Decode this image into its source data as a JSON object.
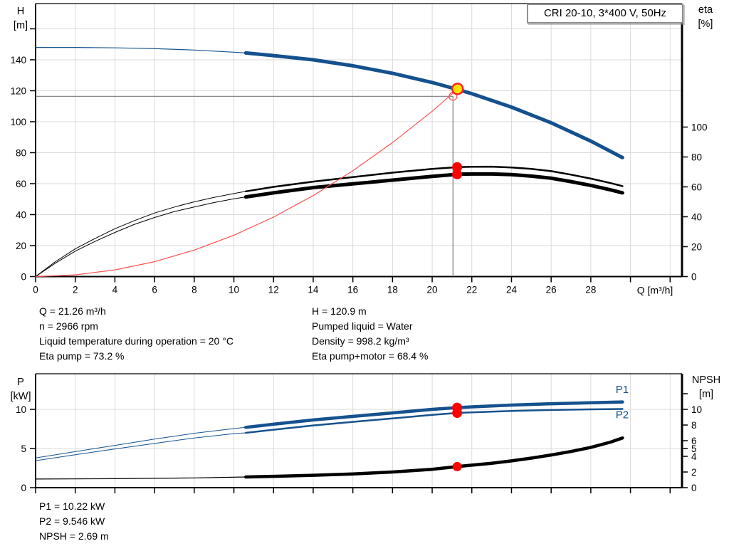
{
  "title_box": "CRI 20-10, 3*400 V, 50Hz",
  "colors": {
    "curve_blue": "#15518E",
    "curve_black": "#000000",
    "system_red": "#FF5050",
    "marker_red": "#FF0000",
    "duty_yellow": "#FFE200",
    "duty_ring_red": "#FF2222",
    "grid": "#DBDBDB",
    "crosshair": "#7A7A7A",
    "axis": "#000000"
  },
  "info_top_left": [
    "Q = 21.26 m³/h",
    "n = 2966 rpm",
    "Liquid temperature during operation = 20 °C",
    "Eta pump = 73.2 %"
  ],
  "info_top_right": [
    "H = 120.9 m",
    "Pumped liquid = Water",
    "Density = 998.2 kg/m³",
    "Eta pump+motor = 68.4 %"
  ],
  "info_bottom": [
    "P1 = 10.22 kW",
    "P2 = 9.546 kW",
    "NPSH = 2.69 m"
  ],
  "chart_data": [
    {
      "type": "line",
      "id": "qh-eta-chart",
      "x_axis": {
        "label": "Q [m³/h]",
        "min": 0,
        "max": 32.6,
        "labels": [
          0,
          2,
          4,
          6,
          8,
          10,
          12,
          14,
          16,
          18,
          20,
          22,
          24,
          26,
          28
        ],
        "marks": [
          0,
          2,
          4,
          6,
          8,
          10,
          12,
          14,
          16,
          18,
          20,
          22,
          24,
          26,
          28,
          30,
          32
        ],
        "grid": [
          2,
          4,
          6,
          8,
          10,
          12,
          14,
          16,
          18,
          20,
          22,
          24,
          26,
          28,
          30,
          32
        ]
      },
      "left_axis": {
        "title": [
          "H",
          "[m]"
        ],
        "min": 0,
        "max": 176.3,
        "labels": [
          0,
          20,
          40,
          60,
          80,
          100,
          120,
          140
        ],
        "marks": [
          0,
          20,
          40,
          60,
          80,
          100,
          120,
          140,
          160
        ],
        "grid": [
          20,
          40,
          60,
          80,
          100,
          120,
          140,
          160
        ]
      },
      "right_axis": {
        "title": [
          "eta",
          "[%]"
        ],
        "min": 0,
        "max": 182.6,
        "labels": [
          0,
          20,
          40,
          60,
          80,
          100
        ],
        "marks": [
          0,
          20,
          40,
          60,
          80,
          100
        ]
      },
      "crosshair": {
        "q": 21.05,
        "v": 116.4,
        "axis": "left"
      },
      "series": [
        {
          "name": "eta-pump",
          "axis": "right",
          "color": "#000000",
          "w_thin": 1,
          "w_thick": 2.5,
          "bold_from": 10.6,
          "points": [
            [
              0,
              0
            ],
            [
              1,
              10
            ],
            [
              2,
              18.5
            ],
            [
              3,
              25.5
            ],
            [
              4,
              32
            ],
            [
              5,
              37.5
            ],
            [
              6,
              42.5
            ],
            [
              7,
              46.5
            ],
            [
              8,
              50
            ],
            [
              9,
              53
            ],
            [
              10,
              55.5
            ],
            [
              10.6,
              57
            ],
            [
              12,
              60
            ],
            [
              14,
              63.5
            ],
            [
              16,
              66.5
            ],
            [
              18,
              69.5
            ],
            [
              20,
              72
            ],
            [
              21.26,
              73.2
            ],
            [
              22,
              73.4
            ],
            [
              23,
              73.5
            ],
            [
              24,
              73
            ],
            [
              25,
              72
            ],
            [
              26,
              70.5
            ],
            [
              27,
              68.2
            ],
            [
              28,
              65.5
            ],
            [
              29,
              62.5
            ],
            [
              29.6,
              60.5
            ]
          ]
        },
        {
          "name": "eta-pump-motor",
          "axis": "right",
          "color": "#000000",
          "w_thin": 1,
          "w_thick": 5,
          "bold_from": 10.6,
          "points": [
            [
              0,
              0
            ],
            [
              1,
              9
            ],
            [
              2,
              17
            ],
            [
              3,
              23.5
            ],
            [
              4,
              29.5
            ],
            [
              5,
              35
            ],
            [
              6,
              39.5
            ],
            [
              7,
              43.5
            ],
            [
              8,
              46.5
            ],
            [
              9,
              49.5
            ],
            [
              10,
              52
            ],
            [
              10.6,
              53.3
            ],
            [
              12,
              56
            ],
            [
              14,
              59.5
            ],
            [
              16,
              62
            ],
            [
              18,
              64.5
            ],
            [
              20,
              67
            ],
            [
              21.26,
              68.4
            ],
            [
              22,
              68.6
            ],
            [
              23,
              68.6
            ],
            [
              24,
              68.2
            ],
            [
              25,
              67.2
            ],
            [
              26,
              65.8
            ],
            [
              27,
              63.5
            ],
            [
              28,
              61
            ],
            [
              29,
              58
            ],
            [
              29.6,
              56
            ]
          ]
        },
        {
          "name": "H-curve",
          "axis": "left",
          "color": "#15518E",
          "w_thin": 1.2,
          "w_thick": 5,
          "bold_from": 10.6,
          "points": [
            [
              0,
              148
            ],
            [
              2,
              148
            ],
            [
              4,
              147.7
            ],
            [
              6,
              147.2
            ],
            [
              8,
              146.3
            ],
            [
              10,
              144.9
            ],
            [
              10.6,
              144.4
            ],
            [
              12,
              142.7
            ],
            [
              14,
              140
            ],
            [
              16,
              136.1
            ],
            [
              18,
              131.3
            ],
            [
              20,
              125.3
            ],
            [
              21.26,
              120.9
            ],
            [
              22,
              118.1
            ],
            [
              24,
              109.4
            ],
            [
              26,
              99.3
            ],
            [
              28,
              87.5
            ],
            [
              29.6,
              76.8
            ]
          ]
        },
        {
          "name": "system-curve",
          "axis": "left",
          "color": "#FF5050",
          "w_thin": 1.2,
          "w_thick": 1.2,
          "bold_from": null,
          "points": [
            [
              0,
              0
            ],
            [
              2,
              1.1
            ],
            [
              4,
              4.3
            ],
            [
              6,
              9.6
            ],
            [
              8,
              17.1
            ],
            [
              10,
              26.7
            ],
            [
              12,
              38.4
            ],
            [
              14,
              52.3
            ],
            [
              16,
              68.3
            ],
            [
              18,
              86.5
            ],
            [
              20,
              106.8
            ],
            [
              21.28,
              121
            ]
          ]
        }
      ],
      "markers": [
        {
          "type": "ring",
          "axis": "left",
          "at": [
            21.05,
            116.4
          ],
          "r": 5.5,
          "stroke": "#FF5050",
          "sw": 1.3
        },
        {
          "type": "dot",
          "axis": "right",
          "at": [
            21.26,
            73.2
          ],
          "r": 7,
          "fill": "#FF0000"
        },
        {
          "type": "dot",
          "axis": "right",
          "at": [
            21.26,
            68.4
          ],
          "r": 7,
          "fill": "#FF0000"
        },
        {
          "type": "duty",
          "axis": "left",
          "at": [
            21.28,
            121.2
          ],
          "r": 7.5,
          "fill": "#FFE200",
          "stroke": "#FF2222",
          "sw": 2.5
        }
      ],
      "annotations": []
    },
    {
      "type": "line",
      "id": "power-npsh-chart",
      "x_axis": {
        "label": "",
        "min": 0,
        "max": 32.6,
        "labels": [],
        "marks": [
          0,
          2,
          4,
          6,
          8,
          10,
          12,
          14,
          16,
          18,
          20,
          22,
          24,
          26,
          28,
          30,
          32
        ],
        "grid": [
          2,
          4,
          6,
          8,
          10,
          12,
          14,
          16,
          18,
          20,
          22,
          24,
          26,
          28,
          30,
          32
        ]
      },
      "left_axis": {
        "title": [
          "P",
          "[kW]"
        ],
        "min": 0,
        "max": 14.55,
        "labels": [
          0,
          5,
          10
        ],
        "marks": [
          0,
          5,
          10
        ],
        "grid": [
          5,
          10
        ]
      },
      "right_axis": {
        "title": [
          "NPSH",
          "[m]"
        ],
        "min": 0,
        "max": 14.55,
        "labels": [
          0,
          2,
          4,
          5,
          6,
          8,
          10
        ],
        "marks": [
          0,
          2,
          4,
          5,
          6,
          8,
          10,
          12
        ]
      },
      "crosshair": null,
      "series": [
        {
          "name": "P1-curve",
          "axis": "left",
          "color": "#15518E",
          "w_thin": 1,
          "w_thick": 4.5,
          "bold_from": 10.6,
          "points": [
            [
              0,
              3.8
            ],
            [
              2,
              4.6
            ],
            [
              4,
              5.4
            ],
            [
              6,
              6.2
            ],
            [
              8,
              6.95
            ],
            [
              10,
              7.55
            ],
            [
              10.6,
              7.7
            ],
            [
              12,
              8.1
            ],
            [
              14,
              8.65
            ],
            [
              16,
              9.1
            ],
            [
              18,
              9.55
            ],
            [
              20,
              10
            ],
            [
              21.26,
              10.22
            ],
            [
              22,
              10.32
            ],
            [
              24,
              10.55
            ],
            [
              26,
              10.72
            ],
            [
              28,
              10.85
            ],
            [
              29.6,
              10.95
            ]
          ]
        },
        {
          "name": "P2-curve",
          "axis": "left",
          "color": "#15518E",
          "w_thin": 1,
          "w_thick": 2.5,
          "bold_from": 10.6,
          "points": [
            [
              0,
              3.45
            ],
            [
              2,
              4.2
            ],
            [
              4,
              4.95
            ],
            [
              6,
              5.65
            ],
            [
              8,
              6.35
            ],
            [
              10,
              6.9
            ],
            [
              10.6,
              7.0
            ],
            [
              12,
              7.4
            ],
            [
              14,
              7.95
            ],
            [
              16,
              8.4
            ],
            [
              18,
              8.85
            ],
            [
              20,
              9.3
            ],
            [
              21.26,
              9.546
            ],
            [
              22,
              9.62
            ],
            [
              24,
              9.8
            ],
            [
              26,
              9.92
            ],
            [
              28,
              10
            ],
            [
              29.6,
              10.05
            ]
          ]
        },
        {
          "name": "NPSH-curve",
          "axis": "right",
          "color": "#000000",
          "w_thin": 1.2,
          "w_thick": 4.5,
          "bold_from": 10.6,
          "points": [
            [
              0,
              1.1
            ],
            [
              4,
              1.15
            ],
            [
              8,
              1.25
            ],
            [
              10.6,
              1.36
            ],
            [
              12,
              1.45
            ],
            [
              14,
              1.58
            ],
            [
              16,
              1.75
            ],
            [
              18,
              2.0
            ],
            [
              20,
              2.35
            ],
            [
              21.26,
              2.69
            ],
            [
              22,
              2.87
            ],
            [
              23,
              3.12
            ],
            [
              24,
              3.42
            ],
            [
              25,
              3.77
            ],
            [
              26,
              4.17
            ],
            [
              27,
              4.62
            ],
            [
              28,
              5.15
            ],
            [
              29,
              5.82
            ],
            [
              29.6,
              6.35
            ]
          ]
        }
      ],
      "markers": [
        {
          "type": "dot",
          "axis": "left",
          "at": [
            21.26,
            10.22
          ],
          "r": 7,
          "fill": "#FF0000"
        },
        {
          "type": "dot",
          "axis": "left",
          "at": [
            21.26,
            9.546
          ],
          "r": 7,
          "fill": "#FF0000"
        },
        {
          "type": "dot",
          "axis": "right",
          "at": [
            21.26,
            2.69
          ],
          "r": 6.5,
          "fill": "#FF0000"
        }
      ],
      "annotations": [
        {
          "text": "P1",
          "q": 29.25,
          "v": 12.1,
          "axis": "left",
          "color": "#15518E",
          "size": 15
        },
        {
          "text": "P2",
          "q": 29.25,
          "v": 8.85,
          "axis": "left",
          "color": "#15518E",
          "size": 15
        }
      ]
    }
  ]
}
